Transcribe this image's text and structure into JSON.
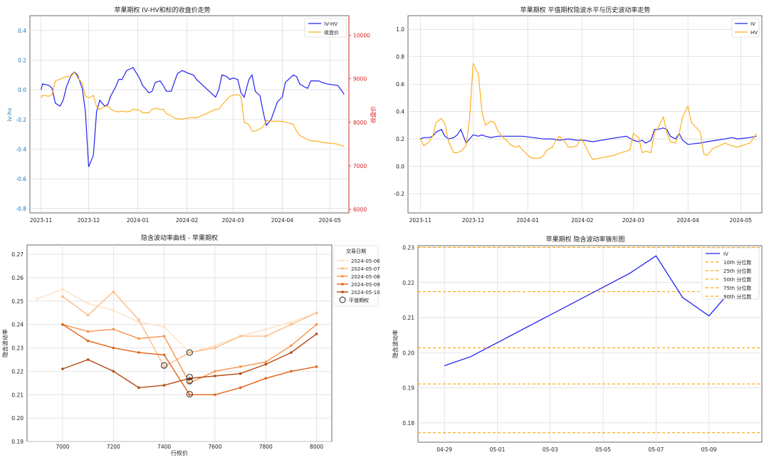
{
  "charts": [
    {
      "type": "line",
      "title": "苹果期权 IV-HV和标的收盘价走势",
      "ylabel": "iv-hv",
      "y2label": "收盘价",
      "ylim": [
        -0.83,
        0.5
      ],
      "y2lim": [
        5920,
        10450
      ],
      "yticks": [
        -0.8,
        -0.6,
        -0.4,
        -0.2,
        0.0,
        0.2,
        0.4
      ],
      "y2ticks": [
        6000,
        7000,
        8000,
        9000,
        10000
      ],
      "xlim": [
        "2023-10-25",
        "2024-05-13"
      ],
      "xticks": [
        "2023-11",
        "2023-12",
        "2024-01",
        "2024-02",
        "2024-03",
        "2024-04",
        "2024-05"
      ],
      "legend": "top-right",
      "series": [
        {
          "name": "IV-HV",
          "axis": "left",
          "color": "#2222ee",
          "x": [
            "2023-11-01",
            "2023-11-02",
            "2023-11-06",
            "2023-11-08",
            "2023-11-10",
            "2023-11-13",
            "2023-11-15",
            "2023-11-17",
            "2023-11-20",
            "2023-11-22",
            "2023-11-24",
            "2023-11-27",
            "2023-11-29",
            "2023-12-01",
            "2023-12-04",
            "2023-12-06",
            "2023-12-08",
            "2023-12-11",
            "2023-12-13",
            "2023-12-15",
            "2023-12-18",
            "2023-12-20",
            "2023-12-22",
            "2023-12-25",
            "2023-12-27",
            "2023-12-29",
            "2024-01-02",
            "2024-01-04",
            "2024-01-08",
            "2024-01-10",
            "2024-01-12",
            "2024-01-15",
            "2024-01-17",
            "2024-01-19",
            "2024-01-22",
            "2024-01-24",
            "2024-01-26",
            "2024-01-29",
            "2024-01-31",
            "2024-02-02",
            "2024-02-05",
            "2024-02-07",
            "2024-02-19",
            "2024-02-21",
            "2024-02-23",
            "2024-02-26",
            "2024-02-28",
            "2024-03-01",
            "2024-03-04",
            "2024-03-06",
            "2024-03-08",
            "2024-03-11",
            "2024-03-13",
            "2024-03-15",
            "2024-03-18",
            "2024-03-20",
            "2024-03-22",
            "2024-03-25",
            "2024-03-27",
            "2024-03-29",
            "2024-04-01",
            "2024-04-03",
            "2024-04-08",
            "2024-04-10",
            "2024-04-12",
            "2024-04-15",
            "2024-04-17",
            "2024-04-19",
            "2024-04-22",
            "2024-04-24",
            "2024-04-26",
            "2024-04-29",
            "2024-05-06",
            "2024-05-08",
            "2024-05-10"
          ],
          "values": [
            0.0,
            0.04,
            0.03,
            0.01,
            -0.09,
            -0.11,
            -0.07,
            0.02,
            0.1,
            0.12,
            0.1,
            0.01,
            -0.15,
            -0.52,
            -0.44,
            -0.15,
            -0.07,
            -0.11,
            -0.1,
            -0.04,
            0.02,
            0.07,
            0.07,
            0.13,
            0.14,
            0.15,
            0.08,
            0.03,
            -0.02,
            -0.01,
            0.05,
            0.06,
            0.03,
            -0.01,
            -0.01,
            0.05,
            0.11,
            0.13,
            0.12,
            0.11,
            0.1,
            0.07,
            -0.05,
            0.0,
            0.1,
            0.09,
            0.07,
            0.08,
            0.07,
            -0.02,
            -0.05,
            0.07,
            0.1,
            -0.01,
            -0.04,
            -0.15,
            -0.24,
            -0.2,
            -0.14,
            -0.08,
            -0.05,
            0.05,
            0.1,
            0.09,
            0.04,
            0.02,
            0.01,
            0.06,
            0.06,
            0.06,
            0.05,
            0.04,
            0.03,
            0.0,
            -0.03
          ]
        },
        {
          "name": "收盘价",
          "axis": "right",
          "color": "#ffb020",
          "x": [
            "2023-11-01",
            "2023-11-02",
            "2023-11-06",
            "2023-11-08",
            "2023-11-10",
            "2023-11-13",
            "2023-11-15",
            "2023-11-17",
            "2023-11-20",
            "2023-11-22",
            "2023-11-24",
            "2023-11-27",
            "2023-11-29",
            "2023-12-01",
            "2023-12-04",
            "2023-12-06",
            "2023-12-08",
            "2023-12-11",
            "2023-12-13",
            "2023-12-15",
            "2023-12-18",
            "2023-12-20",
            "2023-12-22",
            "2023-12-25",
            "2023-12-27",
            "2023-12-29",
            "2024-01-02",
            "2024-01-04",
            "2024-01-08",
            "2024-01-10",
            "2024-01-12",
            "2024-01-15",
            "2024-01-17",
            "2024-01-19",
            "2024-01-22",
            "2024-01-24",
            "2024-01-26",
            "2024-01-29",
            "2024-01-31",
            "2024-02-02",
            "2024-02-05",
            "2024-02-07",
            "2024-02-19",
            "2024-02-21",
            "2024-02-23",
            "2024-02-26",
            "2024-02-28",
            "2024-03-01",
            "2024-03-04",
            "2024-03-06",
            "2024-03-08",
            "2024-03-11",
            "2024-03-13",
            "2024-03-15",
            "2024-03-18",
            "2024-03-20",
            "2024-03-22",
            "2024-03-25",
            "2024-03-27",
            "2024-03-29",
            "2024-04-01",
            "2024-04-03",
            "2024-04-08",
            "2024-04-10",
            "2024-04-12",
            "2024-04-15",
            "2024-04-17",
            "2024-04-19",
            "2024-04-22",
            "2024-04-24",
            "2024-04-26",
            "2024-04-29",
            "2024-05-06",
            "2024-05-08",
            "2024-05-10"
          ],
          "values": [
            8560,
            8620,
            8600,
            8640,
            8950,
            8990,
            9030,
            9050,
            9060,
            9150,
            9030,
            8900,
            8600,
            8560,
            8620,
            8360,
            8300,
            8360,
            8380,
            8300,
            8250,
            8240,
            8260,
            8240,
            8250,
            8300,
            8280,
            8220,
            8220,
            8300,
            8320,
            8300,
            8300,
            8200,
            8150,
            8100,
            8080,
            8070,
            8090,
            8100,
            8110,
            8100,
            8300,
            8300,
            8400,
            8520,
            8600,
            8620,
            8640,
            8600,
            8000,
            7950,
            7800,
            7800,
            7850,
            7900,
            8040,
            8030,
            8020,
            8030,
            8020,
            8010,
            7950,
            7800,
            7700,
            7640,
            7600,
            7580,
            7570,
            7560,
            7540,
            7530,
            7500,
            7470,
            7440
          ]
        }
      ]
    },
    {
      "type": "line",
      "title": "苹果期权 平值期权隐波水平与历史波动率走势",
      "ylim": [
        -0.34,
        1.1
      ],
      "yticks": [
        -0.2,
        0.0,
        0.2,
        0.4,
        0.6,
        0.8,
        1.0
      ],
      "xlim": [
        "2023-10-25",
        "2024-05-13"
      ],
      "xticks": [
        "2023-11",
        "2023-12",
        "2024-01",
        "2024-02",
        "2024-03",
        "2024-04",
        "2024-05"
      ],
      "legend": "top-right",
      "series": [
        {
          "name": "IV",
          "color": "#2222ee",
          "x": [
            "2023-11-01",
            "2023-11-03",
            "2023-11-06",
            "2023-11-08",
            "2023-11-10",
            "2023-11-13",
            "2023-11-15",
            "2023-11-17",
            "2023-11-20",
            "2023-11-22",
            "2023-11-24",
            "2023-11-27",
            "2023-11-29",
            "2023-12-01",
            "2023-12-04",
            "2023-12-06",
            "2023-12-08",
            "2023-12-11",
            "2023-12-15",
            "2023-12-20",
            "2023-12-25",
            "2023-12-29",
            "2024-01-04",
            "2024-01-10",
            "2024-01-15",
            "2024-01-19",
            "2024-01-24",
            "2024-01-29",
            "2024-02-02",
            "2024-02-07",
            "2024-02-21",
            "2024-02-26",
            "2024-03-01",
            "2024-03-04",
            "2024-03-06",
            "2024-03-08",
            "2024-03-11",
            "2024-03-13",
            "2024-03-15",
            "2024-03-18",
            "2024-03-20",
            "2024-03-22",
            "2024-03-25",
            "2024-03-27",
            "2024-03-29",
            "2024-04-01",
            "2024-04-08",
            "2024-04-12",
            "2024-04-17",
            "2024-04-22",
            "2024-04-26",
            "2024-04-29",
            "2024-05-06",
            "2024-05-10"
          ],
          "values": [
            0.2,
            0.21,
            0.21,
            0.22,
            0.25,
            0.27,
            0.22,
            0.2,
            0.21,
            0.23,
            0.27,
            0.17,
            0.2,
            0.23,
            0.22,
            0.23,
            0.22,
            0.21,
            0.22,
            0.22,
            0.22,
            0.22,
            0.21,
            0.2,
            0.2,
            0.19,
            0.2,
            0.19,
            0.19,
            0.18,
            0.21,
            0.22,
            0.19,
            0.18,
            0.19,
            0.17,
            0.19,
            0.27,
            0.27,
            0.28,
            0.27,
            0.22,
            0.2,
            0.24,
            0.19,
            0.16,
            0.17,
            0.18,
            0.19,
            0.2,
            0.21,
            0.2,
            0.21,
            0.22
          ]
        },
        {
          "name": "HV",
          "color": "#ffb020",
          "x": [
            "2023-11-01",
            "2023-11-03",
            "2023-11-06",
            "2023-11-08",
            "2023-11-10",
            "2023-11-13",
            "2023-11-15",
            "2023-11-17",
            "2023-11-20",
            "2023-11-22",
            "2023-11-24",
            "2023-11-27",
            "2023-11-29",
            "2023-12-01",
            "2023-12-04",
            "2023-12-06",
            "2023-12-08",
            "2023-12-11",
            "2023-12-13",
            "2023-12-15",
            "2023-12-18",
            "2023-12-20",
            "2023-12-22",
            "2023-12-25",
            "2023-12-27",
            "2023-12-29",
            "2024-01-02",
            "2024-01-04",
            "2024-01-08",
            "2024-01-10",
            "2024-01-12",
            "2024-01-15",
            "2024-01-17",
            "2024-01-19",
            "2024-01-22",
            "2024-01-24",
            "2024-01-26",
            "2024-01-29",
            "2024-01-31",
            "2024-02-02",
            "2024-02-05",
            "2024-02-07",
            "2024-02-19",
            "2024-02-21",
            "2024-02-23",
            "2024-02-26",
            "2024-02-28",
            "2024-03-01",
            "2024-03-04",
            "2024-03-06",
            "2024-03-08",
            "2024-03-11",
            "2024-03-13",
            "2024-03-15",
            "2024-03-18",
            "2024-03-20",
            "2024-03-22",
            "2024-03-25",
            "2024-03-27",
            "2024-03-29",
            "2024-04-01",
            "2024-04-03",
            "2024-04-08",
            "2024-04-10",
            "2024-04-12",
            "2024-04-15",
            "2024-04-17",
            "2024-04-19",
            "2024-04-22",
            "2024-04-24",
            "2024-04-26",
            "2024-04-29",
            "2024-05-06",
            "2024-05-08",
            "2024-05-10"
          ],
          "values": [
            0.2,
            0.15,
            0.18,
            0.22,
            0.32,
            0.35,
            0.31,
            0.18,
            0.1,
            0.1,
            0.11,
            0.15,
            0.35,
            0.75,
            0.67,
            0.4,
            0.3,
            0.33,
            0.32,
            0.26,
            0.21,
            0.19,
            0.16,
            0.14,
            0.15,
            0.12,
            0.07,
            0.06,
            0.06,
            0.08,
            0.12,
            0.14,
            0.19,
            0.22,
            0.18,
            0.14,
            0.14,
            0.15,
            0.2,
            0.17,
            0.09,
            0.05,
            0.08,
            0.09,
            0.1,
            0.11,
            0.12,
            0.24,
            0.21,
            0.1,
            0.11,
            0.1,
            0.25,
            0.28,
            0.36,
            0.25,
            0.18,
            0.17,
            0.24,
            0.36,
            0.44,
            0.32,
            0.25,
            0.09,
            0.08,
            0.13,
            0.14,
            0.15,
            0.17,
            0.16,
            0.15,
            0.14,
            0.17,
            0.2,
            0.24
          ]
        }
      ]
    },
    {
      "type": "line",
      "title": "隐含波动率曲线 - 苹果期权",
      "xlabel": "行权价",
      "ylabel": "隐含波动率",
      "xlim": [
        6860,
        8060
      ],
      "ylim": [
        0.19,
        0.274
      ],
      "xticks": [
        7000,
        7200,
        7400,
        7600,
        7800,
        8000
      ],
      "yticks": [
        0.19,
        0.2,
        0.21,
        0.22,
        0.23,
        0.24,
        0.25,
        0.26,
        0.27
      ],
      "legend": "right-outside",
      "legend_title": "交易日期",
      "atm_label": "平值期权",
      "series": [
        {
          "name": "2024-05-06",
          "color": "#fee0c4",
          "x": [
            6900,
            7000,
            7100,
            7200,
            7300,
            7400,
            7500,
            7600,
            7700,
            7800,
            7900,
            8000
          ],
          "values": [
            0.251,
            0.255,
            0.249,
            0.246,
            0.241,
            0.239,
            0.228,
            0.231,
            0.235,
            0.238,
            0.241,
            0.245
          ]
        },
        {
          "name": "2024-05-07",
          "color": "#fdbb85",
          "x": [
            7000,
            7100,
            7200,
            7300,
            7400,
            7500,
            7600,
            7700,
            7800,
            7900,
            8000
          ],
          "values": [
            0.252,
            0.244,
            0.254,
            0.242,
            0.222,
            0.228,
            0.23,
            0.235,
            0.235,
            0.24,
            0.245
          ]
        },
        {
          "name": "2024-05-08",
          "color": "#f7924a",
          "x": [
            7000,
            7100,
            7200,
            7300,
            7400,
            7500,
            7600,
            7700,
            7800,
            7900,
            8000
          ],
          "values": [
            0.24,
            0.237,
            0.238,
            0.234,
            0.235,
            0.215,
            0.22,
            0.222,
            0.224,
            0.231,
            0.24
          ]
        },
        {
          "name": "2024-05-09",
          "color": "#e0631a",
          "x": [
            7000,
            7100,
            7200,
            7300,
            7400,
            7500,
            7600,
            7700,
            7800,
            7900,
            8000
          ],
          "values": [
            0.24,
            0.233,
            0.23,
            0.228,
            0.227,
            0.21,
            0.21,
            0.213,
            0.217,
            0.22,
            0.222
          ]
        },
        {
          "name": "2024-05-10",
          "color": "#b34a12",
          "x": [
            7000,
            7100,
            7200,
            7300,
            7400,
            7500,
            7600,
            7700,
            7800,
            7900,
            8000
          ],
          "values": [
            0.221,
            0.225,
            0.22,
            0.213,
            0.214,
            0.217,
            0.218,
            0.219,
            0.223,
            0.228,
            0.236
          ]
        }
      ],
      "atm_points": [
        {
          "x": 7400,
          "y": 0.2225
        },
        {
          "x": 7500,
          "y": 0.228
        },
        {
          "x": 7500,
          "y": 0.2175
        },
        {
          "x": 7500,
          "y": 0.2158
        },
        {
          "x": 7500,
          "y": 0.2102
        }
      ]
    },
    {
      "type": "line",
      "title": "苹果期权 隐含波动率锥形图",
      "ylabel": "隐含波动率",
      "ylim": [
        0.1745,
        0.2305
      ],
      "yticks": [
        0.18,
        0.19,
        0.2,
        0.21,
        0.22,
        0.23
      ],
      "xlim": [
        "2024-04-28",
        "2024-05-11"
      ],
      "xticks": [
        "04-29",
        "05-01",
        "05-03",
        "05-05",
        "05-07",
        "05-09"
      ],
      "legend": "top-right",
      "series": [
        {
          "name": "IV",
          "color": "#2222ee",
          "x": [
            "2024-04-29",
            "2024-04-30",
            "2024-05-06",
            "2024-05-07",
            "2024-05-08",
            "2024-05-09",
            "2024-05-10"
          ],
          "values": [
            0.1963,
            0.1989,
            0.2226,
            0.2276,
            0.2158,
            0.2105,
            0.2192
          ]
        }
      ],
      "percentiles": [
        {
          "name": "10th 分位数",
          "value": 0.1772,
          "color": "#ffa500"
        },
        {
          "name": "25th 分位数",
          "value": 0.1911,
          "color": "#ffa500"
        },
        {
          "name": "50th 分位数",
          "value": 0.2014,
          "color": "#ffa500"
        },
        {
          "name": "75th 分位数",
          "value": 0.2174,
          "color": "#ffa500"
        },
        {
          "name": "90th 分位数",
          "value": 0.23,
          "color": "#ffa500"
        }
      ]
    }
  ],
  "colors": {
    "right_axis": "#dd2222",
    "left_axis_ticks": "#1f77b4",
    "grid": "#d8d8d8",
    "spine": "#444444"
  }
}
